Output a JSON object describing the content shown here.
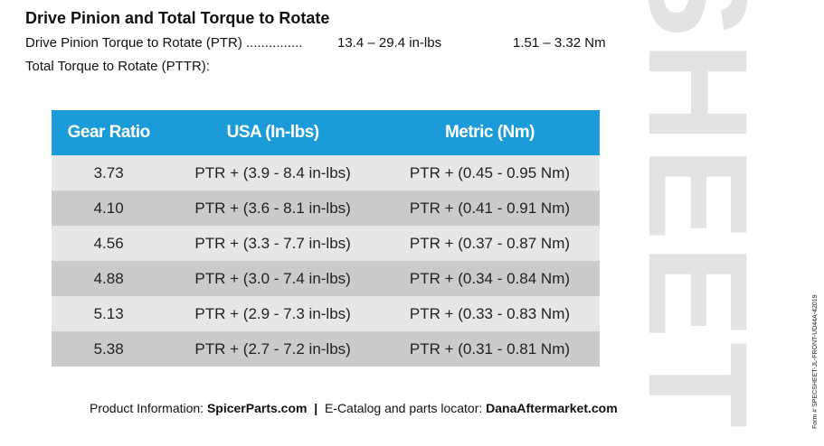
{
  "header": {
    "title": "Drive Pinion and Total Torque to Rotate"
  },
  "specs": [
    {
      "label": "Drive Pinion Torque to Rotate (PTR) ...............",
      "usa": "13.4 – 29.4 in-lbs",
      "metric": "1.51 – 3.32 Nm"
    },
    {
      "label": "Total Torque to Rotate (PTTR):"
    }
  ],
  "table": {
    "columns": [
      "Gear Ratio",
      "USA (In-lbs)",
      "Metric (Nm)"
    ],
    "rows": [
      [
        "3.73",
        "PTR + (3.9 - 8.4 in-lbs)",
        "PTR + (0.45 - 0.95 Nm)"
      ],
      [
        "4.10",
        "PTR + (3.6 - 8.1 in-lbs)",
        "PTR + (0.41 - 0.91 Nm)"
      ],
      [
        "4.56",
        "PTR + (3.3 - 7.7 in-lbs)",
        "PTR + (0.37 - 0.87 Nm)"
      ],
      [
        "4.88",
        "PTR + (3.0 - 7.4 in-lbs)",
        "PTR + (0.34 - 0.84 Nm)"
      ],
      [
        "5.13",
        "PTR + (2.9 - 7.3 in-lbs)",
        "PTR + (0.33 - 0.83 Nm)"
      ],
      [
        "5.38",
        "PTR + (2.7 - 7.2 in-lbs)",
        "PTR + (0.31 - 0.81 Nm)"
      ]
    ]
  },
  "footer": {
    "info_label": "Product Information: ",
    "info_site": "SpicerParts.com",
    "separator": "|",
    "catalog_label": "E-Catalog and parts locator: ",
    "catalog_site": "DanaAftermarket.com"
  },
  "watermark": "SHEET",
  "form_number": "Form # SPECSHEET-JL-FRONT-UD44A-42019"
}
